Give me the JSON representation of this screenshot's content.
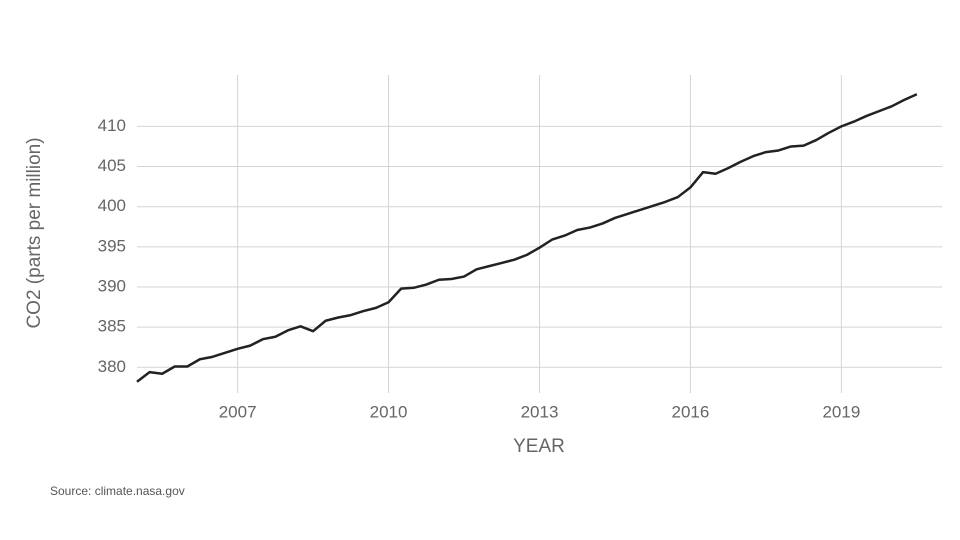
{
  "chart_data": {
    "type": "line",
    "ylabel": "CO2 (parts per million)",
    "xlabel": "YEAR",
    "source": "Source: climate.nasa.gov",
    "x": [
      2005,
      2005.25,
      2005.5,
      2005.75,
      2006,
      2006.25,
      2006.5,
      2006.75,
      2007,
      2007.25,
      2007.5,
      2007.75,
      2008,
      2008.25,
      2008.5,
      2008.75,
      2009,
      2009.25,
      2009.5,
      2009.75,
      2010,
      2010.25,
      2010.5,
      2010.75,
      2011,
      2011.25,
      2011.5,
      2011.75,
      2012,
      2012.25,
      2012.5,
      2012.75,
      2013,
      2013.25,
      2013.5,
      2013.75,
      2014,
      2014.25,
      2014.5,
      2014.75,
      2015,
      2015.25,
      2015.5,
      2015.75,
      2016,
      2016.25,
      2016.5,
      2016.75,
      2017,
      2017.25,
      2017.5,
      2017.75,
      2018,
      2018.25,
      2018.5,
      2018.75,
      2019,
      2019.25,
      2019.5,
      2019.75,
      2020,
      2020.25,
      2020.5
    ],
    "series": [
      {
        "color": "#222222",
        "values": [
          378.2,
          379.4,
          379.2,
          380.1,
          380.1,
          381.0,
          381.3,
          381.8,
          382.3,
          382.7,
          383.5,
          383.8,
          384.6,
          385.1,
          384.5,
          385.8,
          386.2,
          386.5,
          387.0,
          387.4,
          388.1,
          389.8,
          389.9,
          390.3,
          390.9,
          391.0,
          391.3,
          392.2,
          392.6,
          393.0,
          393.4,
          394.0,
          394.9,
          395.9,
          396.4,
          397.1,
          397.4,
          397.9,
          398.6,
          399.1,
          399.6,
          400.1,
          400.6,
          401.2,
          402.4,
          404.3,
          404.1,
          404.8,
          405.6,
          406.3,
          406.8,
          407.0,
          407.5,
          407.6,
          408.3,
          409.2,
          410.0,
          410.6,
          411.3,
          411.9,
          412.5,
          413.3,
          414.0
        ]
      }
    ],
    "xlim": [
      2005,
      2021
    ],
    "xticks": [
      2007,
      2010,
      2013,
      2016,
      2019
    ],
    "ylim": [
      376.8,
      416.4
    ],
    "yticks": [
      380,
      385,
      390,
      395,
      400,
      405,
      410
    ],
    "grid": true
  }
}
